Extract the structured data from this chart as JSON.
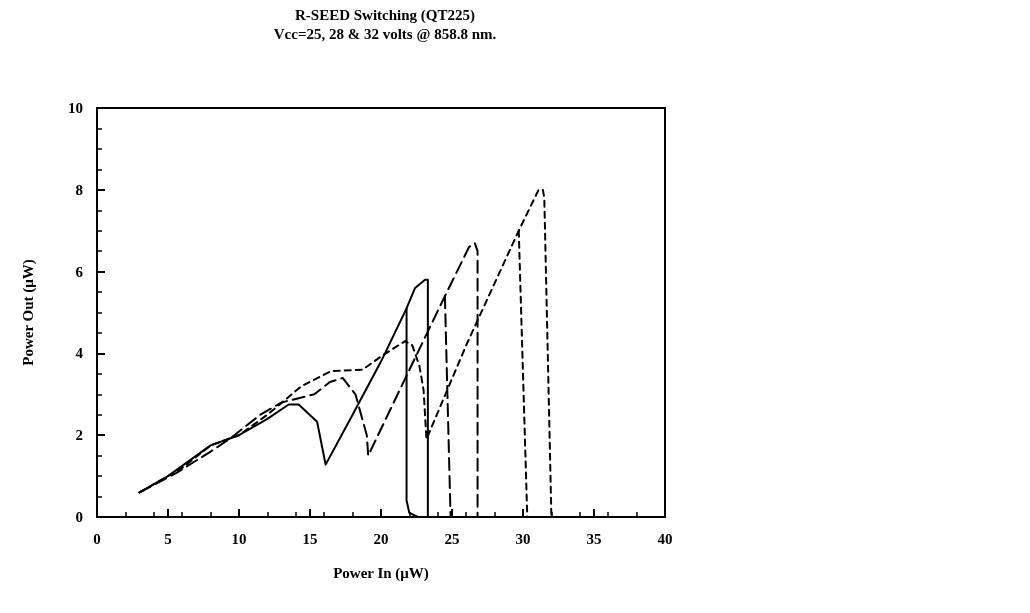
{
  "chart_data": {
    "type": "line",
    "title": "R-SEED Switching (QT225)",
    "subtitle": "Vcc=25, 28 & 32 volts @ 858.8 nm.",
    "xlabel": "Power In (μW)",
    "ylabel": "Power Out (μW)",
    "xlim": [
      0,
      40
    ],
    "xticks": [
      0,
      5,
      10,
      15,
      20,
      25,
      30,
      35,
      40
    ],
    "ylim": [
      0,
      10
    ],
    "yticks": [
      0,
      2,
      4,
      6,
      8,
      10
    ],
    "grid": false,
    "marker": "none",
    "series": [
      {
        "color": "#000000",
        "line_style": "solid",
        "x": [
          3,
          5,
          8,
          10,
          12,
          13.5,
          14.2,
          15.5,
          16.1,
          18,
          20,
          21.8,
          22.4,
          23.1,
          23.3,
          23.3
        ],
        "values": [
          0.6,
          1.0,
          1.75,
          2.0,
          2.4,
          2.75,
          2.75,
          2.33,
          1.28,
          2.5,
          3.8,
          5.1,
          5.6,
          5.8,
          5.8,
          0
        ]
      },
      {
        "color": "#000000",
        "line_style": "solid",
        "x": [
          21.8,
          21.8,
          22.0,
          22.6
        ],
        "values": [
          5.1,
          0.4,
          0.1,
          0
        ]
      },
      {
        "color": "#000000",
        "line_style": "dashed",
        "x": [
          3,
          5.6,
          8,
          9.3,
          11.5,
          13,
          15.3,
          16.4,
          17.3,
          18.2,
          19,
          19.1,
          22,
          24.5,
          26.2,
          26.6,
          26.8,
          26.8
        ],
        "values": [
          0.6,
          1.08,
          1.6,
          1.9,
          2.5,
          2.8,
          3.0,
          3.3,
          3.4,
          3.0,
          2.0,
          1.5,
          3.6,
          5.4,
          6.6,
          6.7,
          6.5,
          0
        ]
      },
      {
        "color": "#000000",
        "line_style": "dashed",
        "x": [
          24.5,
          24.9
        ],
        "values": [
          5.4,
          0
        ]
      },
      {
        "color": "#000000",
        "line_style": "dotted",
        "x": [
          3,
          6,
          8,
          10,
          12,
          14.4,
          16.5,
          18.7,
          20.1,
          21.7,
          22.2,
          22.7,
          23,
          23.2,
          26,
          29.7,
          31.1,
          31.4,
          31.5,
          32.0
        ],
        "values": [
          0.6,
          1.2,
          1.75,
          2.0,
          2.5,
          3.2,
          3.57,
          3.6,
          3.95,
          4.3,
          4.2,
          3.7,
          3.1,
          1.9,
          4.2,
          7.0,
          8.0,
          8.0,
          7.8,
          0
        ]
      },
      {
        "color": "#000000",
        "line_style": "dotted",
        "x": [
          29.7,
          30.3
        ],
        "values": [
          7.0,
          0
        ]
      }
    ]
  }
}
